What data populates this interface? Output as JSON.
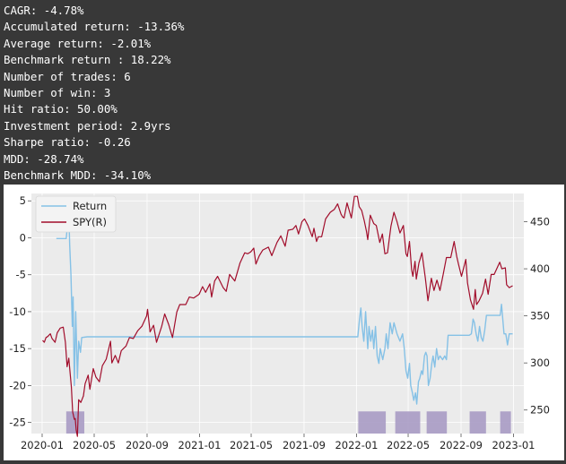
{
  "stats": [
    "CAGR: -4.78%",
    "Accumulated return: -13.36%",
    "Average return: -2.01%",
    "Benchmark return : 18.22%",
    "Number of trades: 6",
    "Number of win: 3",
    "Hit ratio: 50.00%",
    "Investment period: 2.9yrs",
    "Sharpe ratio: -0.26",
    "MDD: -28.74%",
    "Benchmark MDD: -34.10%"
  ],
  "colors": {
    "return": "#85c1e6",
    "spy": "#a10d2b",
    "position": "#a89bc4",
    "plot_bg": "#ebebeb",
    "grid": "#ffffff"
  },
  "chart_data": {
    "type": "line",
    "legend_position": "upper-left",
    "grid": true,
    "x_tick_labels": [
      "2020-01",
      "2020-05",
      "2020-09",
      "2021-01",
      "2021-05",
      "2021-09",
      "2022-01",
      "2022-05",
      "2022-09",
      "2023-01"
    ],
    "y_left": {
      "ticks": [
        5,
        0,
        -5,
        -10,
        -15,
        -20,
        -25
      ],
      "ylim": [
        -26.5,
        6
      ]
    },
    "y_right": {
      "ticks": [
        450,
        400,
        350,
        300,
        250
      ],
      "ylim": [
        225,
        480
      ]
    },
    "series": [
      {
        "name": "Return",
        "axis": "left",
        "points": [
          [
            "2020-02-03",
            -0.1
          ],
          [
            "2020-02-26",
            -0.1
          ],
          [
            "2020-03-03",
            3.5
          ],
          [
            "2020-03-05",
            -1
          ],
          [
            "2020-03-08",
            -5
          ],
          [
            "2020-03-11",
            -12
          ],
          [
            "2020-03-13",
            -8
          ],
          [
            "2020-03-16",
            -20
          ],
          [
            "2020-03-19",
            -10
          ],
          [
            "2020-03-23",
            -19
          ],
          [
            "2020-03-26",
            -14
          ],
          [
            "2020-03-30",
            -15.5
          ],
          [
            "2020-04-02",
            -13.5
          ],
          [
            "2020-04-15",
            -13.4
          ],
          [
            "2021-01-01",
            -13.4
          ],
          [
            "2021-07-01",
            -13.4
          ],
          [
            "2022-01-04",
            -13.4
          ],
          [
            "2022-01-08",
            -11
          ],
          [
            "2022-01-11",
            -9.5
          ],
          [
            "2022-01-14",
            -12
          ],
          [
            "2022-01-18",
            -14
          ],
          [
            "2022-01-22",
            -10
          ],
          [
            "2022-01-27",
            -15
          ],
          [
            "2022-01-30",
            -12
          ],
          [
            "2022-02-03",
            -14
          ],
          [
            "2022-02-07",
            -12.5
          ],
          [
            "2022-02-10",
            -15
          ],
          [
            "2022-02-14",
            -12
          ],
          [
            "2022-02-18",
            -16
          ],
          [
            "2022-02-22",
            -17
          ],
          [
            "2022-02-25",
            -15
          ],
          [
            "2022-03-03",
            -16.5
          ],
          [
            "2022-03-08",
            -15
          ],
          [
            "2022-03-11",
            -13
          ],
          [
            "2022-03-15",
            -15
          ],
          [
            "2022-03-20",
            -11.5
          ],
          [
            "2022-03-25",
            -13
          ],
          [
            "2022-03-29",
            -11.5
          ],
          [
            "2022-04-05",
            -13
          ],
          [
            "2022-04-12",
            -14
          ],
          [
            "2022-04-18",
            -13
          ],
          [
            "2022-04-22",
            -15
          ],
          [
            "2022-04-26",
            -18
          ],
          [
            "2022-04-30",
            -19
          ],
          [
            "2022-05-04",
            -17
          ],
          [
            "2022-05-07",
            -20
          ],
          [
            "2022-05-11",
            -21
          ],
          [
            "2022-05-14",
            -22
          ],
          [
            "2022-05-18",
            -21
          ],
          [
            "2022-05-21",
            -22.5
          ],
          [
            "2022-05-25",
            -19.5
          ],
          [
            "2022-05-28",
            -19
          ],
          [
            "2022-06-01",
            -18
          ],
          [
            "2022-06-04",
            -18.5
          ],
          [
            "2022-06-08",
            -16
          ],
          [
            "2022-06-11",
            -15.5
          ],
          [
            "2022-06-14",
            -16
          ],
          [
            "2022-06-17",
            -20
          ],
          [
            "2022-06-21",
            -19
          ],
          [
            "2022-06-25",
            -17
          ],
          [
            "2022-06-28",
            -16
          ],
          [
            "2022-07-02",
            -17.5
          ],
          [
            "2022-07-06",
            -15
          ],
          [
            "2022-07-10",
            -16.5
          ],
          [
            "2022-07-14",
            -16
          ],
          [
            "2022-07-20",
            -16.5
          ],
          [
            "2022-07-25",
            -16
          ],
          [
            "2022-07-29",
            -16.5
          ],
          [
            "2022-08-02",
            -13.2
          ],
          [
            "2022-08-20",
            -13.2
          ],
          [
            "2022-09-20",
            -13.2
          ],
          [
            "2022-09-25",
            -13
          ],
          [
            "2022-09-29",
            -11
          ],
          [
            "2022-10-02",
            -11.5
          ],
          [
            "2022-10-06",
            -13
          ],
          [
            "2022-10-10",
            -14
          ],
          [
            "2022-10-14",
            -12
          ],
          [
            "2022-10-18",
            -13.5
          ],
          [
            "2022-10-22",
            -14
          ],
          [
            "2022-10-26",
            -12.5
          ],
          [
            "2022-10-30",
            -10.5
          ],
          [
            "2022-11-15",
            -10.5
          ],
          [
            "2022-12-01",
            -10.5
          ],
          [
            "2022-12-04",
            -9
          ],
          [
            "2022-12-07",
            -11
          ],
          [
            "2022-12-10",
            -13
          ],
          [
            "2022-12-14",
            -13
          ],
          [
            "2022-12-18",
            -14.5
          ],
          [
            "2022-12-22",
            -13
          ],
          [
            "2022-12-30",
            -13
          ]
        ]
      },
      {
        "name": "SPY(R)",
        "axis": "right",
        "points": [
          [
            "2020-01-02",
            324
          ],
          [
            "2020-01-06",
            322
          ],
          [
            "2020-01-10",
            327
          ],
          [
            "2020-01-14",
            328
          ],
          [
            "2020-01-20",
            331
          ],
          [
            "2020-01-24",
            326
          ],
          [
            "2020-01-31",
            322
          ],
          [
            "2020-02-05",
            332
          ],
          [
            "2020-02-12",
            337
          ],
          [
            "2020-02-19",
            338
          ],
          [
            "2020-02-24",
            322
          ],
          [
            "2020-02-28",
            296
          ],
          [
            "2020-03-03",
            305
          ],
          [
            "2020-03-09",
            274
          ],
          [
            "2020-03-12",
            248
          ],
          [
            "2020-03-16",
            240
          ],
          [
            "2020-03-18",
            241
          ],
          [
            "2020-03-20",
            229
          ],
          [
            "2020-03-23",
            222
          ],
          [
            "2020-03-26",
            261
          ],
          [
            "2020-03-31",
            258
          ],
          [
            "2020-04-06",
            265
          ],
          [
            "2020-04-10",
            278
          ],
          [
            "2020-04-17",
            287
          ],
          [
            "2020-04-21",
            272
          ],
          [
            "2020-04-29",
            294
          ],
          [
            "2020-05-05",
            285
          ],
          [
            "2020-05-13",
            280
          ],
          [
            "2020-05-20",
            297
          ],
          [
            "2020-05-29",
            304
          ],
          [
            "2020-06-08",
            323
          ],
          [
            "2020-06-11",
            300
          ],
          [
            "2020-06-19",
            308
          ],
          [
            "2020-06-26",
            300
          ],
          [
            "2020-07-03",
            313
          ],
          [
            "2020-07-14",
            318
          ],
          [
            "2020-07-22",
            327
          ],
          [
            "2020-07-31",
            326
          ],
          [
            "2020-08-10",
            334
          ],
          [
            "2020-08-20",
            339
          ],
          [
            "2020-08-31",
            350
          ],
          [
            "2020-09-02",
            357
          ],
          [
            "2020-09-08",
            333
          ],
          [
            "2020-09-16",
            340
          ],
          [
            "2020-09-23",
            322
          ],
          [
            "2020-10-05",
            339
          ],
          [
            "2020-10-12",
            352
          ],
          [
            "2020-10-21",
            341
          ],
          [
            "2020-10-30",
            327
          ],
          [
            "2020-11-09",
            354
          ],
          [
            "2020-11-16",
            362
          ],
          [
            "2020-11-30",
            362
          ],
          [
            "2020-12-08",
            370
          ],
          [
            "2020-12-18",
            369
          ],
          [
            "2020-12-31",
            373
          ],
          [
            "2021-01-08",
            381
          ],
          [
            "2021-01-15",
            375
          ],
          [
            "2021-01-25",
            384
          ],
          [
            "2021-01-29",
            370
          ],
          [
            "2021-02-05",
            387
          ],
          [
            "2021-02-12",
            392
          ],
          [
            "2021-02-25",
            380
          ],
          [
            "2021-03-04",
            376
          ],
          [
            "2021-03-12",
            394
          ],
          [
            "2021-03-24",
            387
          ],
          [
            "2021-04-05",
            406
          ],
          [
            "2021-04-16",
            417
          ],
          [
            "2021-04-23",
            416
          ],
          [
            "2021-04-30",
            418
          ],
          [
            "2021-05-07",
            422
          ],
          [
            "2021-05-12",
            405
          ],
          [
            "2021-05-20",
            414
          ],
          [
            "2021-05-28",
            420
          ],
          [
            "2021-06-10",
            423
          ],
          [
            "2021-06-18",
            414
          ],
          [
            "2021-06-30",
            428
          ],
          [
            "2021-07-09",
            435
          ],
          [
            "2021-07-19",
            424
          ],
          [
            "2021-07-26",
            441
          ],
          [
            "2021-08-06",
            442
          ],
          [
            "2021-08-13",
            446
          ],
          [
            "2021-08-19",
            437
          ],
          [
            "2021-08-27",
            450
          ],
          [
            "2021-09-02",
            453
          ],
          [
            "2021-09-10",
            446
          ],
          [
            "2021-09-20",
            434
          ],
          [
            "2021-09-24",
            443
          ],
          [
            "2021-09-30",
            429
          ],
          [
            "2021-10-04",
            434
          ],
          [
            "2021-10-12",
            434
          ],
          [
            "2021-10-21",
            453
          ],
          [
            "2021-11-01",
            460
          ],
          [
            "2021-11-10",
            463
          ],
          [
            "2021-11-18",
            469
          ],
          [
            "2021-11-26",
            458
          ],
          [
            "2021-11-30",
            455
          ],
          [
            "2021-12-03",
            454
          ],
          [
            "2021-12-10",
            470
          ],
          [
            "2021-12-20",
            454
          ],
          [
            "2021-12-27",
            477
          ],
          [
            "2022-01-03",
            477
          ],
          [
            "2022-01-07",
            466
          ],
          [
            "2022-01-13",
            462
          ],
          [
            "2022-01-19",
            451
          ],
          [
            "2022-01-24",
            440
          ],
          [
            "2022-01-27",
            431
          ],
          [
            "2022-02-02",
            457
          ],
          [
            "2022-02-10",
            448
          ],
          [
            "2022-02-16",
            446
          ],
          [
            "2022-02-24",
            428
          ],
          [
            "2022-03-02",
            437
          ],
          [
            "2022-03-08",
            416
          ],
          [
            "2022-03-14",
            417
          ],
          [
            "2022-03-22",
            445
          ],
          [
            "2022-03-29",
            460
          ],
          [
            "2022-04-05",
            450
          ],
          [
            "2022-04-12",
            438
          ],
          [
            "2022-04-20",
            446
          ],
          [
            "2022-04-26",
            416
          ],
          [
            "2022-04-29",
            413
          ],
          [
            "2022-05-04",
            429
          ],
          [
            "2022-05-09",
            399
          ],
          [
            "2022-05-12",
            392
          ],
          [
            "2022-05-17",
            408
          ],
          [
            "2022-05-20",
            389
          ],
          [
            "2022-05-26",
            406
          ],
          [
            "2022-06-02",
            417
          ],
          [
            "2022-06-10",
            390
          ],
          [
            "2022-06-16",
            366
          ],
          [
            "2022-06-24",
            390
          ],
          [
            "2022-06-30",
            377
          ],
          [
            "2022-07-07",
            388
          ],
          [
            "2022-07-14",
            377
          ],
          [
            "2022-07-22",
            395
          ],
          [
            "2022-07-29",
            412
          ],
          [
            "2022-08-08",
            412
          ],
          [
            "2022-08-16",
            429
          ],
          [
            "2022-08-22",
            413
          ],
          [
            "2022-08-26",
            405
          ],
          [
            "2022-09-02",
            392
          ],
          [
            "2022-09-12",
            410
          ],
          [
            "2022-09-16",
            385
          ],
          [
            "2022-09-23",
            367
          ],
          [
            "2022-09-30",
            357
          ],
          [
            "2022-10-04",
            378
          ],
          [
            "2022-10-07",
            362
          ],
          [
            "2022-10-13",
            366
          ],
          [
            "2022-10-18",
            371
          ],
          [
            "2022-10-21",
            374
          ],
          [
            "2022-10-28",
            389
          ],
          [
            "2022-11-03",
            373
          ],
          [
            "2022-11-10",
            394
          ],
          [
            "2022-11-17",
            394
          ],
          [
            "2022-11-30",
            407
          ],
          [
            "2022-12-05",
            400
          ],
          [
            "2022-12-13",
            401
          ],
          [
            "2022-12-16",
            383
          ],
          [
            "2022-12-22",
            380
          ],
          [
            "2022-12-30",
            382
          ]
        ]
      }
    ],
    "position_periods": [
      [
        "2020-02-26",
        "2020-04-08"
      ],
      [
        "2022-01-05",
        "2022-03-10"
      ],
      [
        "2022-04-01",
        "2022-05-29"
      ],
      [
        "2022-06-13",
        "2022-07-30"
      ],
      [
        "2022-09-21",
        "2022-10-29"
      ],
      [
        "2022-12-01",
        "2022-12-26"
      ]
    ]
  }
}
